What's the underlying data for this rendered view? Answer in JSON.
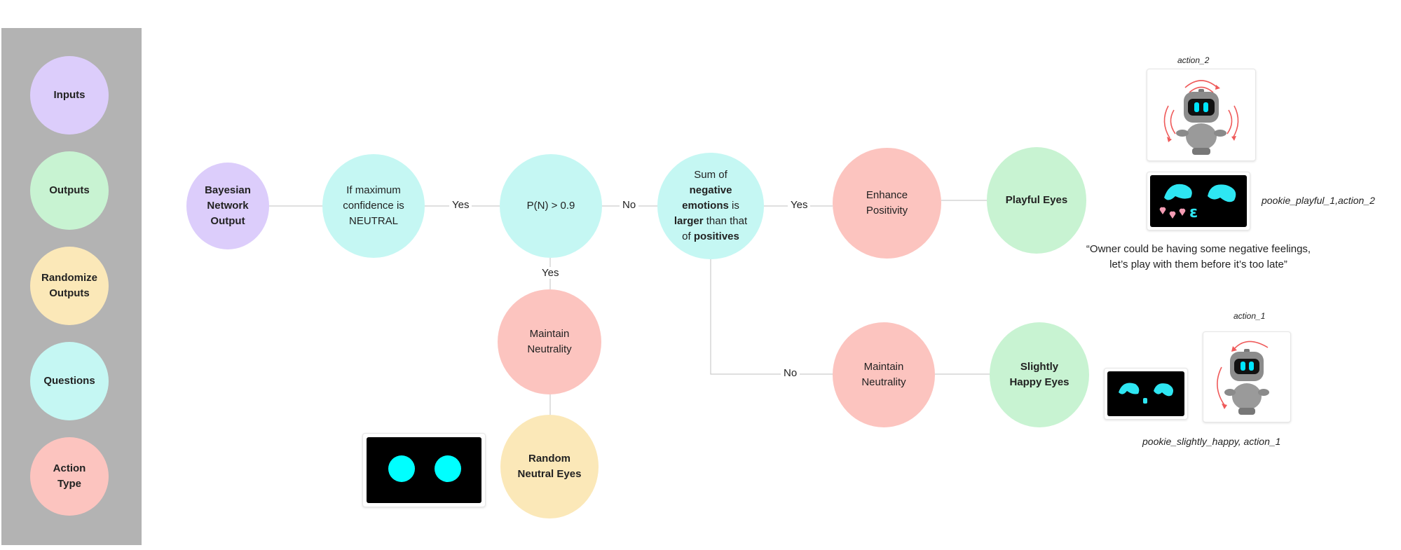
{
  "legend": {
    "inputs": "Inputs",
    "outputs": "Outputs",
    "randomize_outputs": "Randomize Outputs",
    "questions": "Questions",
    "action_type": "Action Type"
  },
  "nodes": {
    "bayesian": "Bayesian Network Output",
    "max_conf": "If maximum confidence is NEUTRAL",
    "pn": "P(N) > 0.9",
    "sum_pre": "Sum of ",
    "sum_negative": "negative emotions",
    "sum_is": " is ",
    "sum_larger": "larger",
    "sum_than": " than that of ",
    "sum_positives": "positives",
    "enhance": "Enhance Positivity",
    "playful": "Playful Eyes",
    "maintain_top": "Maintain Neutrality",
    "random_neutral": "Random Neutral Eyes",
    "maintain_bottom": "Maintain Neutrality",
    "slightly_happy": "Slightly Happy Eyes"
  },
  "edges": {
    "yes1": "Yes",
    "no1": "No",
    "yes2": "Yes",
    "yes3": "Yes",
    "no2": "No"
  },
  "captions": {
    "action_2": "action_2",
    "playful_caption": "pookie_playful_1,action_2",
    "quote_line1": "“Owner could be having some negative feelings,",
    "quote_line2": "let’s play with them before it’s too late”",
    "action_1": "action_1",
    "happy_caption": "pookie_slightly_happy, action_1"
  },
  "colors": {
    "purple": "#dccdfb",
    "green": "#c8f3d2",
    "yellow": "#fbe8b8",
    "cyan": "#c5f7f3",
    "red": "#fcc4bf",
    "eye": "#00ffff"
  }
}
